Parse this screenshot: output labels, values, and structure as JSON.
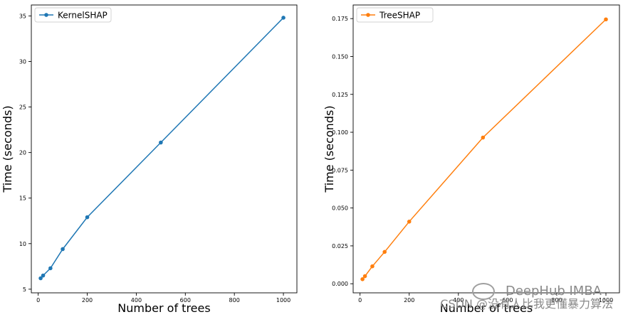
{
  "chart_data": [
    {
      "type": "line",
      "title": "",
      "xlabel": "Number of trees",
      "ylabel": "Time (seconds)",
      "xlim": [
        -28,
        1055
      ],
      "ylim": [
        4.6,
        36.2
      ],
      "xticks": [
        0,
        200,
        400,
        600,
        800,
        1000
      ],
      "yticks": [
        5,
        10,
        15,
        20,
        25,
        30,
        35
      ],
      "ytick_labels": [
        "5",
        "10",
        "15",
        "20",
        "25",
        "30",
        "35"
      ],
      "legend_position": "top-left",
      "grid": false,
      "series": [
        {
          "name": "KernelSHAP",
          "color": "#1f77b4",
          "x": [
            10,
            20,
            50,
            100,
            200,
            500,
            1000
          ],
          "y": [
            6.2,
            6.5,
            7.3,
            9.4,
            12.9,
            21.1,
            34.8
          ]
        }
      ]
    },
    {
      "type": "line",
      "title": "",
      "xlabel": "Number of trees",
      "ylabel": "Time (seconds)",
      "xlim": [
        -28,
        1055
      ],
      "ylim": [
        -0.006,
        0.184
      ],
      "xticks": [
        0,
        200,
        400,
        600,
        800,
        1000
      ],
      "yticks": [
        0.0,
        0.025,
        0.05,
        0.075,
        0.1,
        0.125,
        0.15,
        0.175
      ],
      "ytick_labels": [
        "0.000",
        "0.025",
        "0.050",
        "0.075",
        "0.100",
        "0.125",
        "0.150",
        "0.175"
      ],
      "legend_position": "top-left",
      "grid": false,
      "series": [
        {
          "name": "TreeSHAP",
          "color": "#ff7f0e",
          "x": [
            10,
            20,
            50,
            100,
            200,
            500,
            1000
          ],
          "y": [
            0.003,
            0.005,
            0.0115,
            0.021,
            0.041,
            0.0965,
            0.1745
          ]
        }
      ]
    }
  ],
  "watermark": {
    "main": "DeepHub IMBA",
    "sub": "CSDN @没有人比我更懂暴力算法"
  }
}
